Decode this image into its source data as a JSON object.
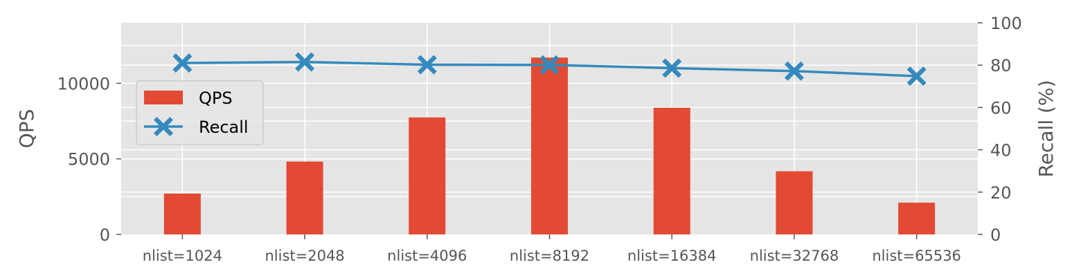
{
  "chart_data": {
    "type": "bar",
    "categories": [
      "nlist=1024",
      "nlist=2048",
      "nlist=4096",
      "nlist=8192",
      "nlist=16384",
      "nlist=32768",
      "nlist=65536"
    ],
    "series": [
      {
        "name": "QPS",
        "type": "bar",
        "axis": "left",
        "values": [
          2700,
          4820,
          7740,
          11700,
          8380,
          4180,
          2100
        ],
        "color": "#E24A33"
      },
      {
        "name": "Recall",
        "type": "line",
        "axis": "right",
        "marker": "X",
        "values": [
          81,
          81.5,
          80.2,
          80.1,
          78.6,
          77.2,
          74.8
        ],
        "color": "#348ABD"
      }
    ],
    "ylabel": "QPS",
    "y2label": "Recall (%)",
    "ylim": [
      0,
      14000
    ],
    "yticks": [
      0,
      5000,
      10000
    ],
    "y2lim": [
      0,
      100
    ],
    "y2ticks": [
      0,
      20,
      40,
      60,
      80,
      100
    ],
    "grid": true,
    "legend": "upper-left",
    "background": "#E5E5E5"
  }
}
